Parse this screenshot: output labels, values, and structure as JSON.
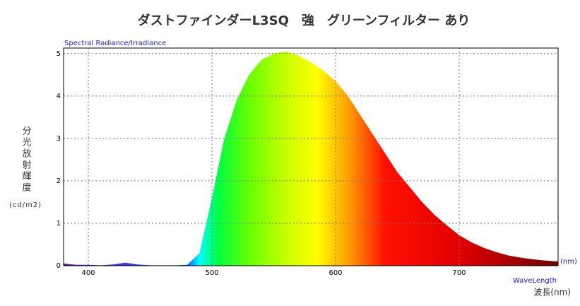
{
  "chart_data": {
    "type": "area",
    "title": "ダストファインダーL3SQ　強　グリーンフィルター あり",
    "subtitle": "Spectral Radiance/Irradiance",
    "y_label": "分光放射輝度",
    "y_unit": "(cd/m2)",
    "x_unit": "(nm)",
    "x_label": "WaveLength",
    "x_label_ja": "波長(nm)",
    "x": [
      380,
      390,
      400,
      410,
      420,
      430,
      440,
      450,
      460,
      470,
      480,
      490,
      500,
      510,
      520,
      530,
      540,
      550,
      560,
      570,
      580,
      590,
      600,
      610,
      620,
      630,
      640,
      650,
      660,
      670,
      680,
      690,
      700,
      710,
      720,
      730,
      740,
      750,
      760,
      770,
      780
    ],
    "values": [
      0.05,
      0.02,
      0.02,
      0.01,
      0.03,
      0.07,
      0.03,
      0.01,
      0.01,
      0.01,
      0.02,
      0.3,
      1.6,
      3.0,
      3.9,
      4.5,
      4.85,
      5.0,
      5.05,
      4.95,
      4.8,
      4.6,
      4.35,
      4.0,
      3.55,
      3.1,
      2.65,
      2.2,
      1.85,
      1.5,
      1.2,
      0.95,
      0.72,
      0.55,
      0.42,
      0.32,
      0.24,
      0.19,
      0.15,
      0.12,
      0.1
    ],
    "xlim": [
      380,
      780
    ],
    "ylim": [
      0,
      5.13
    ],
    "xticks": [
      400,
      500,
      600,
      700
    ],
    "yticks": [
      0,
      1,
      2,
      3,
      4,
      5
    ],
    "grid": true
  }
}
